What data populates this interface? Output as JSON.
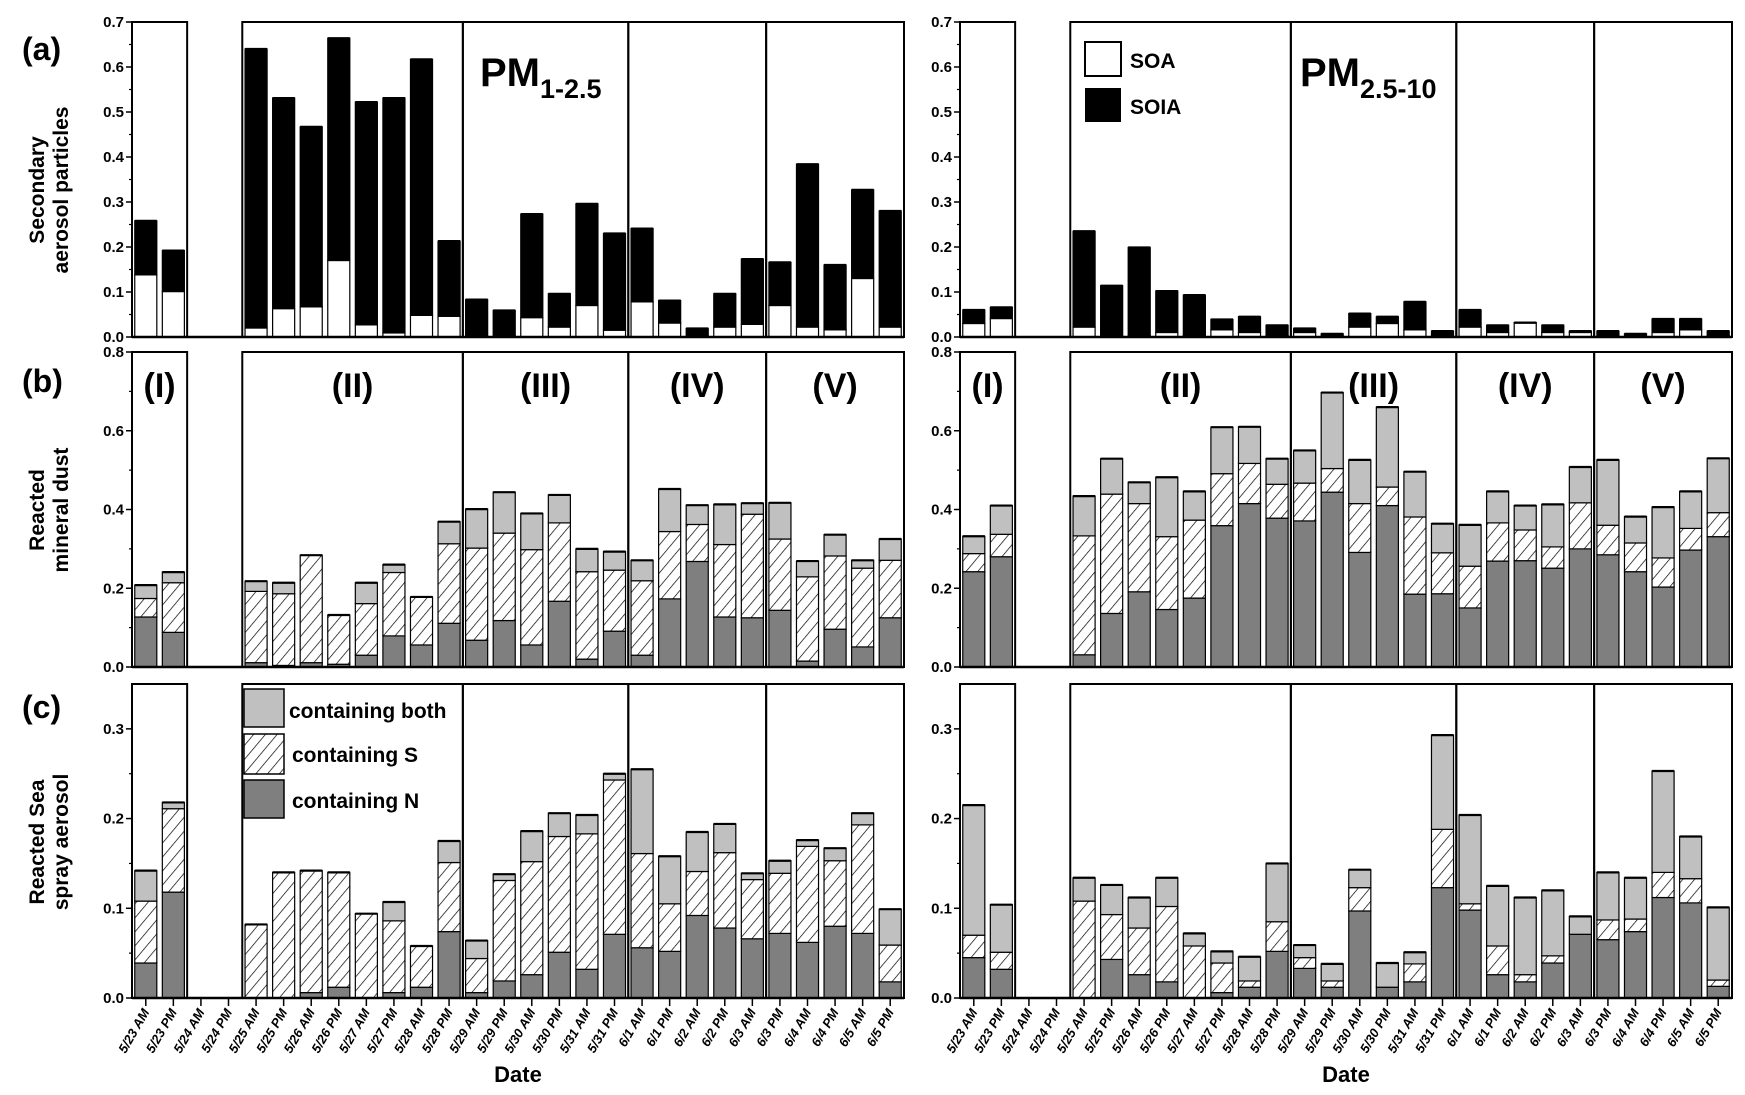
{
  "figure": {
    "panel_labels": [
      "(a)",
      "(b)",
      "(c)"
    ],
    "ylabels": [
      [
        "Secondary",
        "aerosol particles"
      ],
      [
        "Reacted",
        "mineral dust"
      ],
      [
        "Reacted Sea",
        "spray aerosol"
      ]
    ],
    "xlabel": "Date",
    "size_titles": [
      {
        "main": "PM",
        "sub": "1-2.5"
      },
      {
        "main": "PM",
        "sub": "2.5-10"
      }
    ],
    "periods": [
      {
        "label": "(I)",
        "from": "5/23 AM",
        "to": "5/23 PM"
      },
      {
        "label": "(II)",
        "from": "5/25 AM",
        "to": "5/28 PM"
      },
      {
        "label": "(III)",
        "from": "5/29 AM",
        "to": "5/31 PM"
      },
      {
        "label": "(IV)",
        "from": "6/1 AM",
        "to": "6/3 AM"
      },
      {
        "label": "(V)",
        "from": "6/3 PM",
        "to": "6/5 PM"
      }
    ],
    "legend_a": [
      "SOA",
      "SOIA"
    ],
    "legend_c": [
      "containing both",
      "containing S",
      "containing N"
    ],
    "colors": {
      "SOA": "#ffffff",
      "SOIA": "#000000",
      "containing N": "#7f7f7f",
      "containing S": "hatched",
      "containing both": "#c0c0c0"
    }
  },
  "chart_data": [
    {
      "type": "bar",
      "stacked": true,
      "panel": "(a)",
      "size": "PM1-2.5",
      "ylabel": "Secondary aerosol particles",
      "xlabel": "Date",
      "ylim": [
        0,
        0.7
      ],
      "yticks": [
        "0.0",
        "0.1",
        "0.2",
        "0.3",
        "0.4",
        "0.5",
        "0.6",
        "0.7"
      ],
      "categories": [
        "5/23 AM",
        "5/23 PM",
        "5/24 AM",
        "5/24 PM",
        "5/25 AM",
        "5/25 PM",
        "5/26 AM",
        "5/26 PM",
        "5/27 AM",
        "5/27 PM",
        "5/28 AM",
        "5/28 PM",
        "5/29 AM",
        "5/29 PM",
        "5/30 AM",
        "5/30 PM",
        "5/31 AM",
        "5/31 PM",
        "6/1 AM",
        "6/1 PM",
        "6/2 AM",
        "6/2 PM",
        "6/3 AM",
        "6/3 PM",
        "6/4 AM",
        "6/4 PM",
        "6/5 AM",
        "6/5 PM"
      ],
      "series": [
        {
          "name": "SOA",
          "values": [
            0.138,
            0.101,
            null,
            null,
            0.02,
            0.063,
            0.067,
            0.17,
            0.027,
            0.009,
            0.048,
            0.046,
            0.002,
            0.002,
            0.043,
            0.022,
            0.07,
            0.015,
            0.078,
            0.031,
            0.002,
            0.022,
            0.028,
            0.07,
            0.022,
            0.016,
            0.13,
            0.022
          ]
        },
        {
          "name": "SOIA",
          "values": [
            0.12,
            0.091,
            null,
            null,
            0.62,
            0.468,
            0.4,
            0.494,
            0.495,
            0.522,
            0.569,
            0.167,
            0.081,
            0.057,
            0.23,
            0.074,
            0.226,
            0.215,
            0.163,
            0.05,
            0.017,
            0.074,
            0.145,
            0.096,
            0.362,
            0.144,
            0.197,
            0.258
          ]
        }
      ]
    },
    {
      "type": "bar",
      "stacked": true,
      "panel": "(a)",
      "size": "PM2.5-10",
      "ylim": [
        0,
        0.7
      ],
      "yticks": [
        "0.0",
        "0.1",
        "0.2",
        "0.3",
        "0.4",
        "0.5",
        "0.6",
        "0.7"
      ],
      "categories": [
        "5/23 AM",
        "5/23 PM",
        "5/24 AM",
        "5/24 PM",
        "5/25 AM",
        "5/25 PM",
        "5/26 AM",
        "5/26 PM",
        "5/27 AM",
        "5/27 PM",
        "5/28 AM",
        "5/28 PM",
        "5/29 AM",
        "5/29 PM",
        "5/30 AM",
        "5/30 PM",
        "5/31 AM",
        "5/31 PM",
        "6/1 AM",
        "6/1 PM",
        "6/2 AM",
        "6/2 PM",
        "6/3 AM",
        "6/3 PM",
        "6/4 AM",
        "6/4 PM",
        "6/5 AM",
        "6/5 PM"
      ],
      "series": [
        {
          "name": "SOA",
          "values": [
            0.03,
            0.041,
            null,
            null,
            0.022,
            0.003,
            0.002,
            0.01,
            0.003,
            0.016,
            0.01,
            0.003,
            0.01,
            0.002,
            0.022,
            0.03,
            0.016,
            0.002,
            0.022,
            0.01,
            0.031,
            0.01,
            0.01,
            0.002,
            0.001,
            0.01,
            0.016,
            0.003
          ]
        },
        {
          "name": "SOIA",
          "values": [
            0.03,
            0.025,
            null,
            null,
            0.213,
            0.111,
            0.197,
            0.092,
            0.09,
            0.023,
            0.035,
            0.023,
            0.009,
            0.005,
            0.03,
            0.015,
            0.062,
            0.011,
            0.038,
            0.016,
            0.001,
            0.016,
            0.003,
            0.011,
            0.006,
            0.03,
            0.024,
            0.01
          ]
        }
      ]
    },
    {
      "type": "bar",
      "stacked": true,
      "panel": "(b)",
      "size": "PM1-2.5",
      "ylabel": "Reacted mineral dust",
      "ylim": [
        0,
        0.8
      ],
      "yticks": [
        "0.0",
        "0.2",
        "0.4",
        "0.6",
        "0.8"
      ],
      "categories": [
        "5/23 AM",
        "5/23 PM",
        "5/24 AM",
        "5/24 PM",
        "5/25 AM",
        "5/25 PM",
        "5/26 AM",
        "5/26 PM",
        "5/27 AM",
        "5/27 PM",
        "5/28 AM",
        "5/28 PM",
        "5/29 AM",
        "5/29 PM",
        "5/30 AM",
        "5/30 PM",
        "5/31 AM",
        "5/31 PM",
        "6/1 AM",
        "6/1 PM",
        "6/2 AM",
        "6/2 PM",
        "6/3 AM",
        "6/3 PM",
        "6/4 AM",
        "6/4 PM",
        "6/5 AM",
        "6/5 PM"
      ],
      "series": [
        {
          "name": "containing N",
          "values": [
            0.127,
            0.088,
            null,
            null,
            0.011,
            0.004,
            0.011,
            0.007,
            0.03,
            0.079,
            0.056,
            0.111,
            0.068,
            0.118,
            0.056,
            0.167,
            0.02,
            0.091,
            0.03,
            0.173,
            0.268,
            0.127,
            0.125,
            0.144,
            0.015,
            0.096,
            0.051,
            0.125
          ]
        },
        {
          "name": "containing S",
          "values": [
            0.047,
            0.126,
            null,
            null,
            0.181,
            0.182,
            0.273,
            0.125,
            0.131,
            0.161,
            0.122,
            0.202,
            0.234,
            0.222,
            0.242,
            0.199,
            0.222,
            0.155,
            0.189,
            0.171,
            0.094,
            0.184,
            0.263,
            0.181,
            0.214,
            0.186,
            0.2,
            0.146
          ]
        },
        {
          "name": "containing both",
          "values": [
            0.034,
            0.027,
            null,
            null,
            0.026,
            0.028,
            0,
            0,
            0.053,
            0.02,
            0,
            0.056,
            0.099,
            0.104,
            0.092,
            0.071,
            0.058,
            0.047,
            0.052,
            0.108,
            0.049,
            0.102,
            0.028,
            0.092,
            0.04,
            0.054,
            0.02,
            0.054
          ]
        }
      ]
    },
    {
      "type": "bar",
      "stacked": true,
      "panel": "(b)",
      "size": "PM2.5-10",
      "ylim": [
        0,
        0.8
      ],
      "yticks": [
        "0.0",
        "0.2",
        "0.4",
        "0.6",
        "0.8"
      ],
      "categories": [
        "5/23 AM",
        "5/23 PM",
        "5/24 AM",
        "5/24 PM",
        "5/25 AM",
        "5/25 PM",
        "5/26 AM",
        "5/26 PM",
        "5/27 AM",
        "5/27 PM",
        "5/28 AM",
        "5/28 PM",
        "5/29 AM",
        "5/29 PM",
        "5/30 AM",
        "5/30 PM",
        "5/31 AM",
        "5/31 PM",
        "6/1 AM",
        "6/1 PM",
        "6/2 AM",
        "6/2 PM",
        "6/3 AM",
        "6/3 PM",
        "6/4 AM",
        "6/4 PM",
        "6/5 AM",
        "6/5 PM"
      ],
      "series": [
        {
          "name": "containing N",
          "values": [
            0.242,
            0.28,
            null,
            null,
            0.031,
            0.136,
            0.191,
            0.146,
            0.175,
            0.359,
            0.415,
            0.378,
            0.371,
            0.444,
            0.291,
            0.41,
            0.185,
            0.186,
            0.15,
            0.269,
            0.27,
            0.251,
            0.3,
            0.285,
            0.242,
            0.203,
            0.297,
            0.331
          ]
        },
        {
          "name": "containing S",
          "values": [
            0.046,
            0.057,
            null,
            null,
            0.302,
            0.303,
            0.224,
            0.185,
            0.198,
            0.132,
            0.102,
            0.086,
            0.096,
            0.06,
            0.124,
            0.047,
            0.196,
            0.104,
            0.106,
            0.097,
            0.078,
            0.054,
            0.117,
            0.075,
            0.073,
            0.074,
            0.055,
            0.061
          ]
        },
        {
          "name": "containing both",
          "values": [
            0.044,
            0.073,
            null,
            null,
            0.101,
            0.09,
            0.054,
            0.151,
            0.073,
            0.118,
            0.093,
            0.065,
            0.083,
            0.193,
            0.111,
            0.203,
            0.115,
            0.074,
            0.105,
            0.08,
            0.062,
            0.108,
            0.091,
            0.166,
            0.067,
            0.129,
            0.094,
            0.138
          ]
        }
      ]
    },
    {
      "type": "bar",
      "stacked": true,
      "panel": "(c)",
      "size": "PM1-2.5",
      "ylabel": "Reacted Sea spray aerosol",
      "ylim": [
        0,
        0.35
      ],
      "yticks": [
        "0.0",
        "0.1",
        "0.2",
        "0.3"
      ],
      "categories": [
        "5/23 AM",
        "5/23 PM",
        "5/24 AM",
        "5/24 PM",
        "5/25 AM",
        "5/25 PM",
        "5/26 AM",
        "5/26 PM",
        "5/27 AM",
        "5/27 PM",
        "5/28 AM",
        "5/28 PM",
        "5/29 AM",
        "5/29 PM",
        "5/30 AM",
        "5/30 PM",
        "5/31 AM",
        "5/31 PM",
        "6/1 AM",
        "6/1 PM",
        "6/2 AM",
        "6/2 PM",
        "6/3 AM",
        "6/3 PM",
        "6/4 AM",
        "6/4 PM",
        "6/5 AM",
        "6/5 PM"
      ],
      "series": [
        {
          "name": "containing N",
          "values": [
            0.039,
            0.118,
            null,
            null,
            0,
            0,
            0.006,
            0.012,
            0,
            0.006,
            0.012,
            0.074,
            0.006,
            0.019,
            0.026,
            0.051,
            0.032,
            0.071,
            0.056,
            0.052,
            0.092,
            0.078,
            0.066,
            0.072,
            0.062,
            0.08,
            0.072,
            0.018
          ]
        },
        {
          "name": "containing S",
          "values": [
            0.069,
            0.093,
            null,
            null,
            0.082,
            0.14,
            0.136,
            0.128,
            0.094,
            0.08,
            0.046,
            0.077,
            0.038,
            0.112,
            0.126,
            0.129,
            0.151,
            0.172,
            0.105,
            0.053,
            0.049,
            0.084,
            0.066,
            0.067,
            0.107,
            0.073,
            0.121,
            0.041
          ]
        },
        {
          "name": "containing both",
          "values": [
            0.034,
            0.007,
            null,
            null,
            0,
            0,
            0,
            0,
            0,
            0.021,
            0,
            0.024,
            0.02,
            0.007,
            0.034,
            0.026,
            0.021,
            0.007,
            0.094,
            0.053,
            0.044,
            0.032,
            0.007,
            0.014,
            0.007,
            0.014,
            0.013,
            0.04
          ]
        }
      ]
    },
    {
      "type": "bar",
      "stacked": true,
      "panel": "(c)",
      "size": "PM2.5-10",
      "ylim": [
        0,
        0.35
      ],
      "yticks": [
        "0.0",
        "0.1",
        "0.2",
        "0.3"
      ],
      "categories": [
        "5/23 AM",
        "5/23 PM",
        "5/24 AM",
        "5/24 PM",
        "5/25 AM",
        "5/25 PM",
        "5/26 AM",
        "5/26 PM",
        "5/27 AM",
        "5/27 PM",
        "5/28 AM",
        "5/28 PM",
        "5/29 AM",
        "5/29 PM",
        "5/30 AM",
        "5/30 PM",
        "5/31 AM",
        "5/31 PM",
        "6/1 AM",
        "6/1 PM",
        "6/2 AM",
        "6/2 PM",
        "6/3 AM",
        "6/3 PM",
        "6/4 AM",
        "6/4 PM",
        "6/5 AM",
        "6/5 PM"
      ],
      "series": [
        {
          "name": "containing N",
          "values": [
            0.045,
            0.032,
            null,
            null,
            0,
            0.043,
            0.026,
            0.018,
            0,
            0.006,
            0.012,
            0.052,
            0.033,
            0.012,
            0.097,
            0.012,
            0.018,
            0.123,
            0.098,
            0.026,
            0.018,
            0.039,
            0.071,
            0.065,
            0.074,
            0.112,
            0.106,
            0.013
          ]
        },
        {
          "name": "containing S",
          "values": [
            0.025,
            0.019,
            null,
            null,
            0.108,
            0.05,
            0.052,
            0.084,
            0.058,
            0.033,
            0.007,
            0.033,
            0.012,
            0.007,
            0.026,
            0,
            0.02,
            0.065,
            0.007,
            0.032,
            0.008,
            0.008,
            0,
            0.022,
            0.014,
            0.028,
            0.027,
            0.007
          ]
        },
        {
          "name": "containing both",
          "values": [
            0.145,
            0.053,
            null,
            null,
            0.026,
            0.033,
            0.034,
            0.032,
            0.014,
            0.013,
            0.027,
            0.065,
            0.014,
            0.019,
            0.02,
            0.027,
            0.013,
            0.105,
            0.099,
            0.067,
            0.086,
            0.073,
            0.02,
            0.053,
            0.046,
            0.113,
            0.047,
            0.081
          ]
        }
      ]
    }
  ]
}
